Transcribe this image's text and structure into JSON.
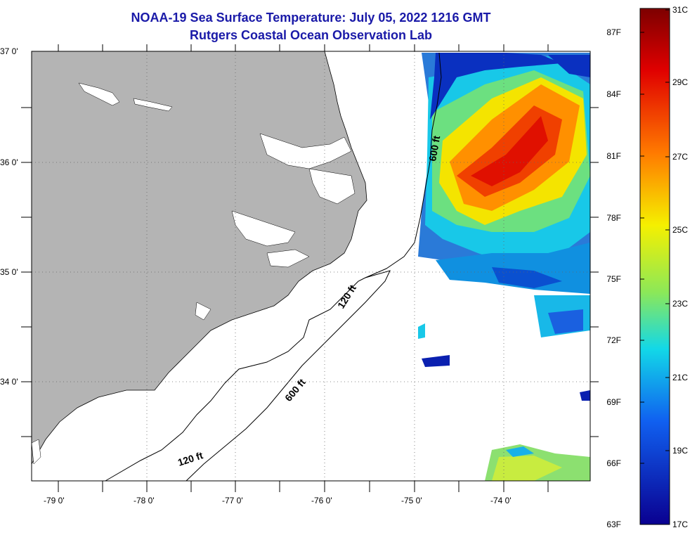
{
  "header": {
    "title": "NOAA-19 Sea Surface Temperature:  July 05, 2022 1216 GMT",
    "subtitle": "Rutgers Coastal Ocean Observation Lab"
  },
  "map": {
    "lat_labels": [
      "37 0'",
      "36 0'",
      "35 0'",
      "34 0'"
    ],
    "lon_labels": [
      "-79 0'",
      "-78 0'",
      "-77 0'",
      "-76 0'",
      "-75 0'",
      "-74 0'"
    ],
    "contours": [
      {
        "label": "600 ft"
      },
      {
        "label": "120 ft"
      },
      {
        "label": "600 ft"
      },
      {
        "label": "120 ft"
      }
    ],
    "colors": {
      "land": "#b4b4b4",
      "ocean_nodata": "#ffffff"
    }
  },
  "colorbar": {
    "fahrenheit_labels": [
      "87F",
      "84F",
      "81F",
      "78F",
      "75F",
      "72F",
      "69F",
      "66F",
      "63F"
    ],
    "celsius_labels": [
      "31C",
      "29C",
      "27C",
      "25C",
      "23C",
      "21C",
      "19C",
      "17C"
    ]
  }
}
